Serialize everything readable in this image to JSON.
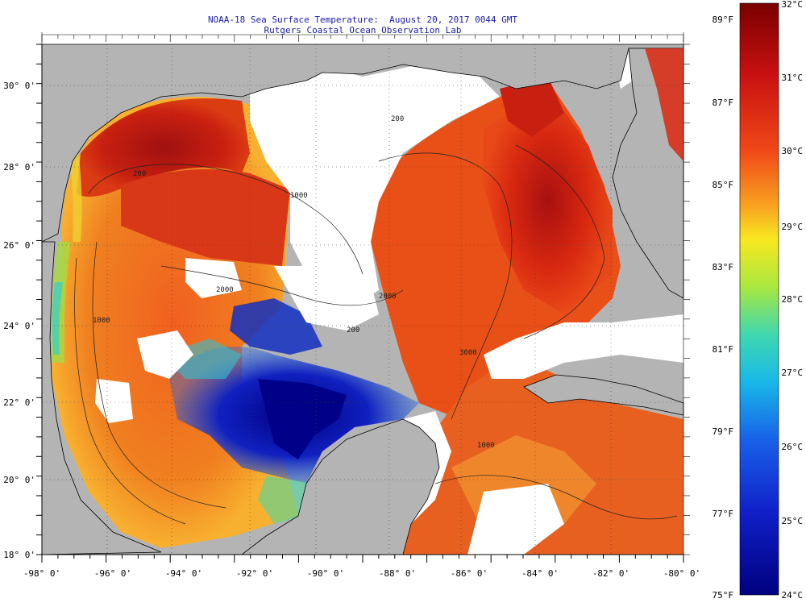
{
  "title": {
    "line1": "NOAA-18 Sea Surface Temperature:  August 20, 2017 0044 GMT",
    "line2": "Rutgers Coastal Ocean Observation Lab"
  },
  "axes": {
    "lon_labels": [
      "-98° 0'",
      "-96° 0'",
      "-94° 0'",
      "-92° 0'",
      "-90° 0'",
      "-88° 0'",
      "-86° 0'",
      "-84° 0'",
      "-82° 0'",
      "-80° 0'"
    ],
    "lat_labels": [
      "30° 0'",
      "28° 0'",
      "26° 0'",
      "24° 0'",
      "22° 0'",
      "20° 0'",
      "18° 0'"
    ]
  },
  "colorbar": {
    "celsius_labels": [
      "32°C",
      "31°C",
      "30°C",
      "29°C",
      "28°C",
      "27°C",
      "26°C",
      "25°C",
      "24°C"
    ],
    "fahrenheit_labels": [
      "89°F",
      "87°F",
      "85°F",
      "83°F",
      "81°F",
      "79°F",
      "77°F",
      "75°F"
    ]
  },
  "contour_labels": [
    "200",
    "1000",
    "2000",
    "1000",
    "200",
    "2000",
    "1000",
    "200",
    "3000"
  ],
  "colors": {
    "land": "#b4b4b4",
    "cloud": "#ffffff",
    "title": "#1a1aa8",
    "warm": "#b01010",
    "hot": "#e83010",
    "orange": "#f07020",
    "yellow": "#f0e020",
    "cyan": "#20d0e0",
    "blue": "#2040e0",
    "navy": "#0a0a90"
  }
}
